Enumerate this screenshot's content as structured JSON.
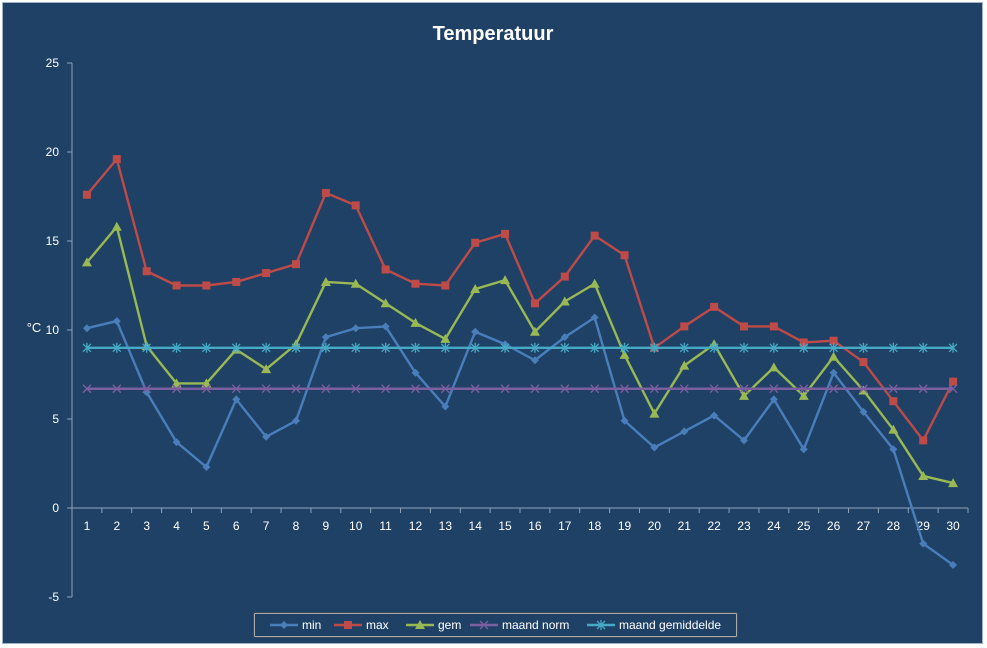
{
  "chart_data": {
    "type": "line",
    "title": "Temperatuur",
    "xlabel": "",
    "ylabel": "°C",
    "ylim": [
      -5,
      25
    ],
    "yticks": [
      -5,
      0,
      5,
      10,
      15,
      20,
      25
    ],
    "x": [
      1,
      2,
      3,
      4,
      5,
      6,
      7,
      8,
      9,
      10,
      11,
      12,
      13,
      14,
      15,
      16,
      17,
      18,
      19,
      20,
      21,
      22,
      23,
      24,
      25,
      26,
      27,
      28,
      29,
      30
    ],
    "grid": false,
    "legend_position": "bottom",
    "background_color": "#1f4166",
    "series": [
      {
        "name": "min",
        "color": "#4a7ebb",
        "marker": "diamond",
        "values": [
          10.1,
          10.5,
          6.5,
          3.7,
          2.3,
          6.1,
          4.0,
          4.9,
          9.6,
          10.1,
          10.2,
          7.6,
          5.7,
          9.9,
          9.2,
          8.3,
          9.6,
          10.7,
          4.9,
          3.4,
          4.3,
          5.2,
          3.8,
          6.1,
          3.3,
          7.6,
          5.4,
          3.3,
          -2.0,
          -3.2
        ]
      },
      {
        "name": "max",
        "color": "#be4b48",
        "marker": "square",
        "values": [
          17.6,
          19.6,
          13.3,
          12.5,
          12.5,
          12.7,
          13.2,
          13.7,
          17.7,
          17.0,
          13.4,
          12.6,
          12.5,
          14.9,
          15.4,
          11.5,
          13.0,
          15.3,
          14.2,
          9.0,
          10.2,
          11.3,
          10.2,
          10.2,
          9.3,
          9.4,
          8.2,
          6.0,
          3.8,
          7.1
        ]
      },
      {
        "name": "gem",
        "color": "#98b954",
        "marker": "triangle",
        "values": [
          13.8,
          15.8,
          9.1,
          7.0,
          7.0,
          8.9,
          7.8,
          9.2,
          12.7,
          12.6,
          11.5,
          10.4,
          9.5,
          12.3,
          12.8,
          9.9,
          11.6,
          12.6,
          8.6,
          5.3,
          8.0,
          9.2,
          6.3,
          7.9,
          6.3,
          8.5,
          6.6,
          4.4,
          1.8,
          1.4
        ]
      },
      {
        "name": "maand norm",
        "color": "#7d5fa0",
        "marker": "x",
        "values": [
          6.7,
          6.7,
          6.7,
          6.7,
          6.7,
          6.7,
          6.7,
          6.7,
          6.7,
          6.7,
          6.7,
          6.7,
          6.7,
          6.7,
          6.7,
          6.7,
          6.7,
          6.7,
          6.7,
          6.7,
          6.7,
          6.7,
          6.7,
          6.7,
          6.7,
          6.7,
          6.7,
          6.7,
          6.7,
          6.7
        ]
      },
      {
        "name": "maand gemiddelde",
        "color": "#46aac5",
        "marker": "star",
        "values": [
          9.0,
          9.0,
          9.0,
          9.0,
          9.0,
          9.0,
          9.0,
          9.0,
          9.0,
          9.0,
          9.0,
          9.0,
          9.0,
          9.0,
          9.0,
          9.0,
          9.0,
          9.0,
          9.0,
          9.0,
          9.0,
          9.0,
          9.0,
          9.0,
          9.0,
          9.0,
          9.0,
          9.0,
          9.0,
          9.0
        ]
      }
    ]
  }
}
